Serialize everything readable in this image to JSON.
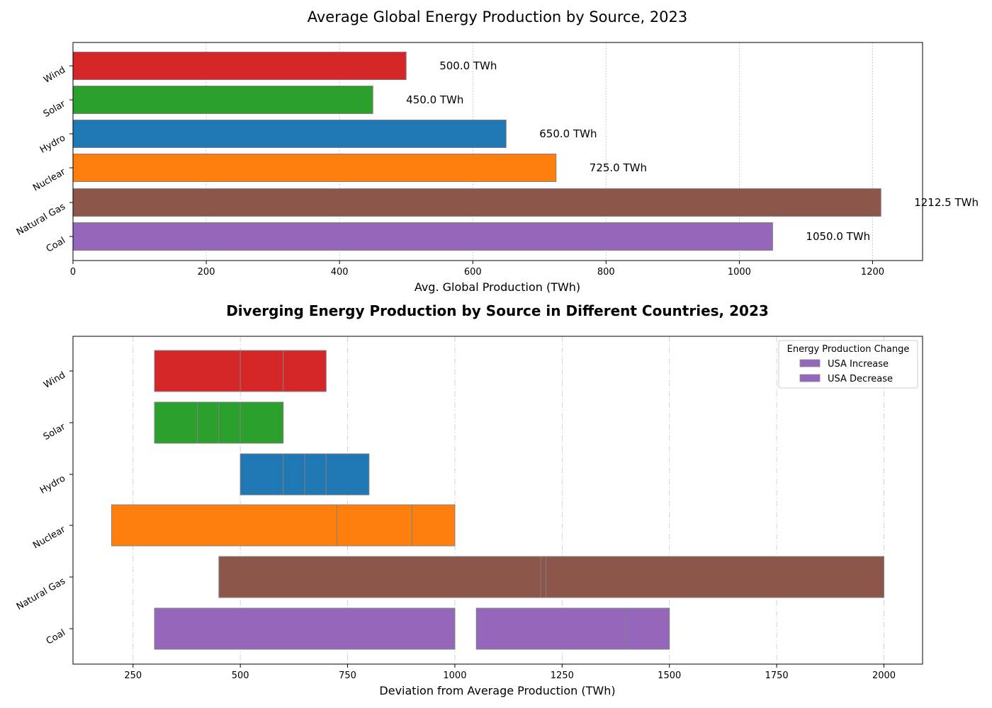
{
  "chart_data": [
    {
      "type": "bar",
      "orientation": "horizontal",
      "title": "Average Global Energy Production by Source, 2023",
      "xlabel": "Avg. Global Production (TWh)",
      "categories": [
        "Wind",
        "Solar",
        "Hydro",
        "Nuclear",
        "Natural Gas",
        "Coal"
      ],
      "values": [
        500.0,
        450.0,
        650.0,
        725.0,
        1212.5,
        1050.0
      ],
      "data_labels": [
        "500.0 TWh",
        "450.0 TWh",
        "650.0 TWh",
        "725.0 TWh",
        "1212.5 TWh",
        "1050.0 TWh"
      ],
      "colors": [
        "#d62728",
        "#2ca02c",
        "#1f77b4",
        "#ff7f0e",
        "#8c564b",
        "#9467bd"
      ],
      "xlim": [
        0,
        1275
      ],
      "xticks": [
        0,
        200,
        400,
        600,
        800,
        1000,
        1200
      ],
      "grid": "x, dotted"
    },
    {
      "type": "bar",
      "orientation": "horizontal",
      "title": "Diverging Energy Production by Source in Different Countries, 2023",
      "xlabel": "Deviation from Average Production (TWh)",
      "categories": [
        "Wind",
        "Solar",
        "Hydro",
        "Nuclear",
        "Natural Gas",
        "Coal"
      ],
      "colors": [
        "#d62728",
        "#2ca02c",
        "#1f77b4",
        "#ff7f0e",
        "#8c564b",
        "#9467bd"
      ],
      "segments": [
        [
          [
            300,
            500
          ],
          [
            500,
            600
          ],
          [
            600,
            700
          ]
        ],
        [
          [
            300,
            400
          ],
          [
            400,
            450
          ],
          [
            450,
            500
          ],
          [
            500,
            600
          ]
        ],
        [
          [
            500,
            600
          ],
          [
            600,
            650
          ],
          [
            650,
            700
          ],
          [
            700,
            800
          ]
        ],
        [
          [
            200,
            800
          ],
          [
            725,
            900
          ],
          [
            900,
            1000
          ]
        ],
        [
          [
            450,
            1200
          ],
          [
            1200,
            1212.5
          ],
          [
            1212.5,
            2000
          ]
        ],
        [
          [
            300,
            1000
          ],
          [
            1050,
            1400
          ],
          [
            1400,
            1500
          ]
        ]
      ],
      "xlim": [
        110,
        2090
      ],
      "xticks": [
        250,
        500,
        750,
        1000,
        1250,
        1500,
        1750,
        2000
      ],
      "grid": "x, dash-dot",
      "legend": {
        "title": "Energy Production Change",
        "position": "top-right",
        "entries": [
          {
            "label": "USA Increase",
            "color": "#9467bd"
          },
          {
            "label": "USA Decrease",
            "color": "#9467bd"
          }
        ]
      }
    }
  ]
}
